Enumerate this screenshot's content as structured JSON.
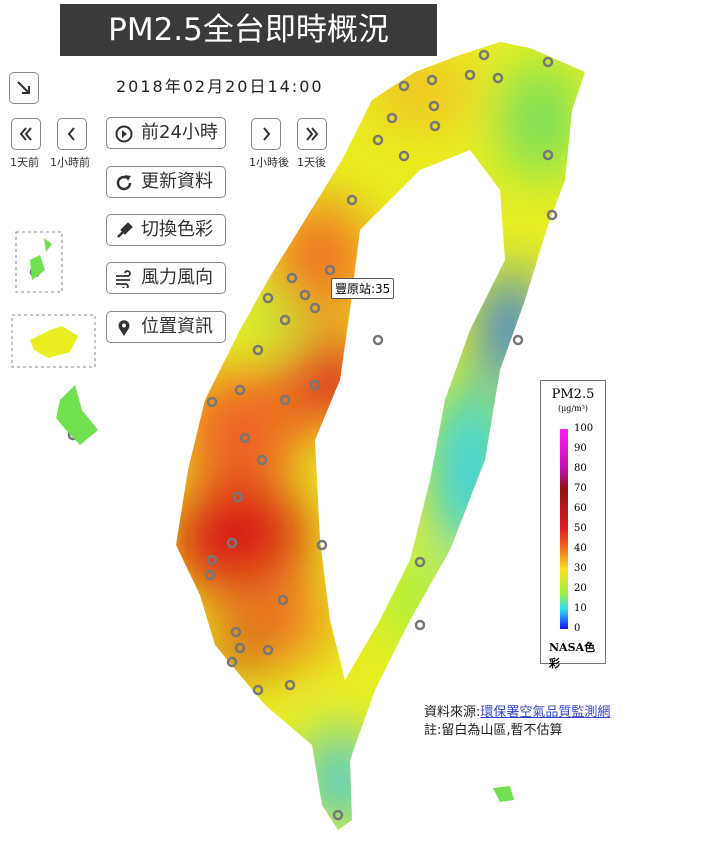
{
  "header": {
    "title": "PM2.5全台即時概況",
    "datetime": "2018年02月20日14:00"
  },
  "controls": {
    "step_labels": [
      "1天前",
      "1小時前",
      "1小時後",
      "1天後"
    ],
    "buttons": [
      "前24小時",
      "更新資料",
      "切換色彩",
      "風力風向",
      "位置資訊"
    ]
  },
  "tooltip": "豐原站:35",
  "legend": {
    "title": "PM2.5",
    "unit": "(μg/m³)",
    "ticks": [
      100,
      90,
      80,
      70,
      60,
      50,
      40,
      30,
      20,
      10,
      0
    ],
    "palette": "NASA色彩"
  },
  "source": {
    "label": "資料來源:",
    "link": "環保署空氣品質監測網",
    "note": "註:留白為山區,暫不估算"
  }
}
